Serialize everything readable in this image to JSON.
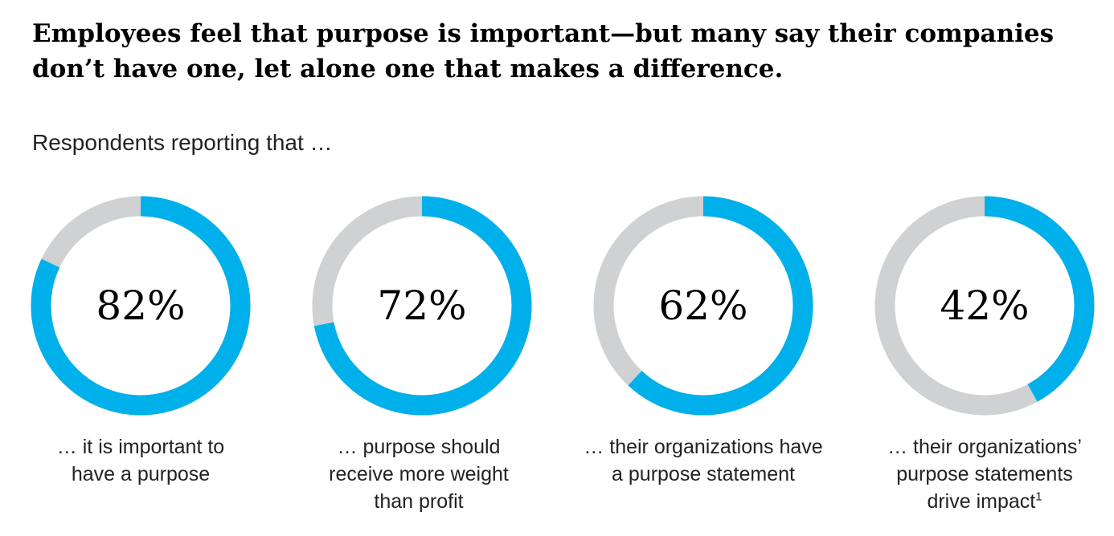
{
  "title": "Employees feel that purpose is important—but many say their companies don’t have one, let alone one that makes a difference.",
  "subtitle": "Respondents reporting that …",
  "colors": {
    "filled": "#00b0ea",
    "remainder": "#d0d1d3"
  },
  "chart_data": {
    "type": "donut",
    "items": [
      {
        "value": 82,
        "label": "82%",
        "caption_lines": [
          "… it is important to",
          "have a purpose"
        ],
        "footnote": ""
      },
      {
        "value": 72,
        "label": "72%",
        "caption_lines": [
          "… purpose should",
          "receive more weight",
          "than profit"
        ],
        "footnote": ""
      },
      {
        "value": 62,
        "label": "62%",
        "caption_lines": [
          "… their organizations have",
          "a purpose statement"
        ],
        "footnote": ""
      },
      {
        "value": 42,
        "label": "42%",
        "caption_lines": [
          "… their organizations’",
          "purpose statements",
          "drive impact"
        ],
        "footnote": "1"
      }
    ]
  }
}
